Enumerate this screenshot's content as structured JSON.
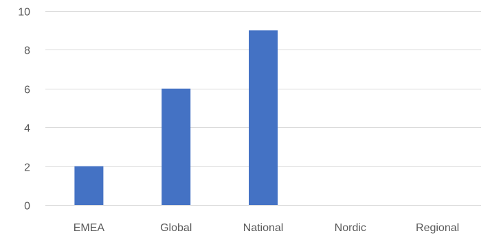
{
  "chart_data": {
    "type": "bar",
    "categories": [
      "EMEA",
      "Global",
      "National",
      "Nordic",
      "Regional"
    ],
    "values": [
      2,
      6,
      9,
      0,
      0
    ],
    "title": "",
    "xlabel": "",
    "ylabel": "",
    "ylim": [
      0,
      10
    ],
    "yticks": [
      "0",
      "2",
      "4",
      "6",
      "8",
      "10"
    ],
    "grid": true,
    "legend": "none",
    "bar_color": "#4472c4"
  }
}
